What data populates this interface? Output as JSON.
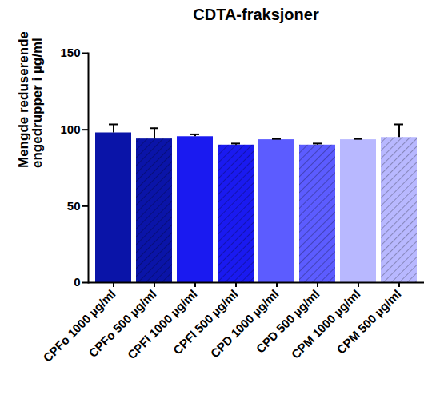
{
  "chart_data": {
    "type": "bar",
    "title": "CDTA-fraksjoner",
    "y_label": "Mengde reduserende engedrupper i µg/ml",
    "categories": [
      "CPFo 1000 µg/ml",
      "CPFo 500 µg/ml",
      "CPFl 1000 µg/ml",
      "CPFl 500 µg/ml",
      "CPD 1000 µg/ml",
      "CPD 500 µg/ml",
      "CPM 1000 µg/ml",
      "CPM 500 µg/ml"
    ],
    "values": [
      98,
      94,
      95.5,
      90,
      93.5,
      90,
      93.5,
      95
    ],
    "errors": [
      5.5,
      7,
      1.5,
      1,
      0.5,
      1,
      0.5,
      8.5
    ],
    "colors": [
      "#0a14a8",
      "#0a14a8",
      "#1a1af0",
      "#1a1af0",
      "#5c5cff",
      "#5c5cff",
      "#b8b8ff",
      "#b8b8ff"
    ],
    "ylim": [
      0,
      150
    ],
    "yticks": [
      0,
      50,
      100,
      150
    ],
    "grid": false
  }
}
